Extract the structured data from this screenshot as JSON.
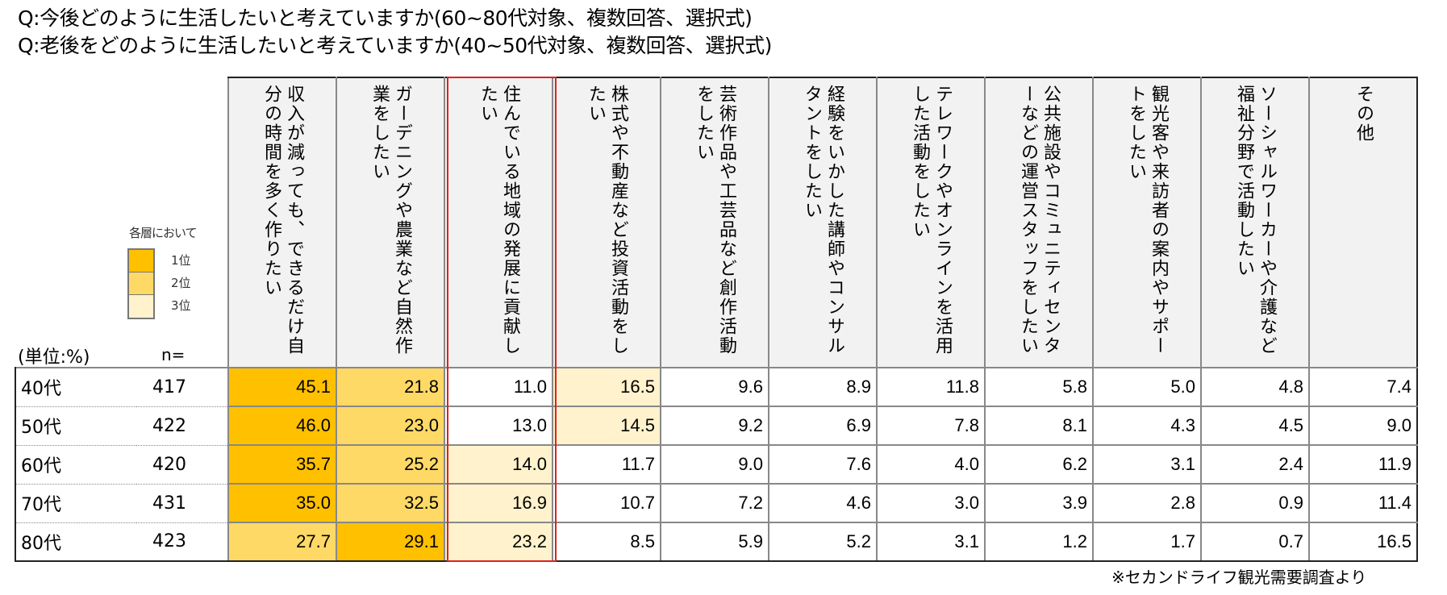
{
  "titles": [
    "Q:今後どのように生活したいと考えていますか(60~80代対象、複数回答、選択式)",
    "Q:老後をどのように生活したいと考えていますか(40~50代対象、複数回答、選択式)"
  ],
  "legend": {
    "caption": "各層において",
    "items": [
      {
        "label": "1位",
        "color": "#ffc000"
      },
      {
        "label": "2位",
        "color": "#ffd966"
      },
      {
        "label": "3位",
        "color": "#fff2cc"
      }
    ]
  },
  "unit_label": "(単位:%)",
  "n_label": "n=",
  "highlight_color": "#e02020",
  "columns": [
    "収入が減っても、できるだけ自分の時間を多く作りたい",
    "ガーデニングや農業など自然作業をしたい",
    "住んでいる地域の発展に貢献したい",
    "株式や不動産など投資活動をしたい",
    "芸術作品や工芸品など創作活動をしたい",
    "経験をいかした講師やコンサルタントをしたい",
    "テレワークやオンラインを活用した活動をしたい",
    "公共施設やコミュニティセンターなどの運営スタッフをしたい",
    "観光客や来訪者の案内やサポートをしたい",
    "ソーシャルワーカーや介護など福祉分野で活動したい",
    "その他"
  ],
  "rows": [
    {
      "age": "40代",
      "n": "417",
      "values": [
        "45.1",
        "21.8",
        "11.0",
        "16.5",
        "9.6",
        "8.9",
        "11.8",
        "5.8",
        "5.0",
        "4.8",
        "7.4"
      ],
      "ranks": [
        1,
        2,
        0,
        3,
        0,
        0,
        0,
        0,
        0,
        0,
        0
      ]
    },
    {
      "age": "50代",
      "n": "422",
      "values": [
        "46.0",
        "23.0",
        "13.0",
        "14.5",
        "9.2",
        "6.9",
        "7.8",
        "8.1",
        "4.3",
        "4.5",
        "9.0"
      ],
      "ranks": [
        1,
        2,
        0,
        3,
        0,
        0,
        0,
        0,
        0,
        0,
        0
      ]
    },
    {
      "age": "60代",
      "n": "420",
      "values": [
        "35.7",
        "25.2",
        "14.0",
        "11.7",
        "9.0",
        "7.6",
        "4.0",
        "6.2",
        "3.1",
        "2.4",
        "11.9"
      ],
      "ranks": [
        1,
        2,
        3,
        0,
        0,
        0,
        0,
        0,
        0,
        0,
        0
      ]
    },
    {
      "age": "70代",
      "n": "431",
      "values": [
        "35.0",
        "32.5",
        "16.9",
        "10.7",
        "7.2",
        "4.6",
        "3.0",
        "3.9",
        "2.8",
        "0.9",
        "11.4"
      ],
      "ranks": [
        1,
        2,
        3,
        0,
        0,
        0,
        0,
        0,
        0,
        0,
        0
      ]
    },
    {
      "age": "80代",
      "n": "423",
      "values": [
        "27.7",
        "29.1",
        "23.2",
        "8.5",
        "5.9",
        "5.2",
        "3.1",
        "1.2",
        "1.7",
        "0.7",
        "16.5"
      ],
      "ranks": [
        2,
        1,
        3,
        0,
        0,
        0,
        0,
        0,
        0,
        0,
        0
      ]
    }
  ],
  "footer": "※セカンドライフ観光需要調査より"
}
